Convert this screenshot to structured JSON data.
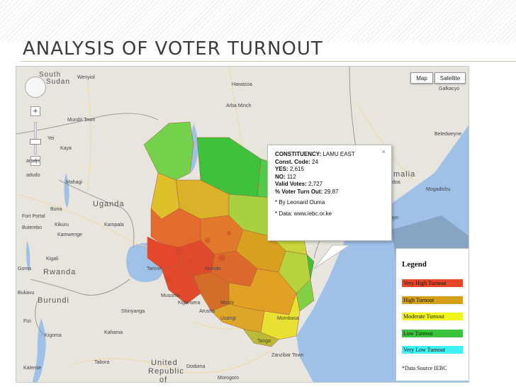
{
  "slide": {
    "title": "ANALYSIS OF VOTER TURNOUT"
  },
  "map": {
    "map_type_buttons": [
      "Map",
      "Satellite"
    ],
    "zoom_in": "+",
    "zoom_out": "−",
    "place_labels": {
      "south_sudan_1": "South",
      "south_sudan_2": "Sudan",
      "wenyiol": "Wenyiol",
      "hawassa": "Hawassa",
      "arba_minch": "Arba Minch",
      "mundri": "Mundri Town",
      "yei": "Yei",
      "kaya": "Kaya",
      "aradje": "aradje",
      "adudo": "adudo",
      "mahagi": "Mahagi",
      "uganda": "Uganda",
      "buna": "Buna",
      "fort_portal": "Fort Portal",
      "kampala": "Kampala",
      "kikuru": "Kikuru",
      "kamwenge": "Kamwenge",
      "bukavu_top": "Butembo",
      "kigali": "Kigali",
      "rwanda": "Rwanda",
      "goma": "Goma",
      "bukavu": "Bukavu",
      "burundi": "Burundi",
      "fizi": "Fizi",
      "kigoma": "Kigoma",
      "kalemie": "Kalemie",
      "tarime": "Tarime",
      "nairobi": "Nairobi",
      "musoma": "Musoma",
      "moshi": "Moshi",
      "arusha": "Arusha",
      "usangi": "Usangi",
      "kigonsera": "Kigonsera",
      "mombasa": "Mombasa",
      "tanga": "Tanga",
      "zanzibar": "Zanzibar Town",
      "shinyanga": "Shinyanga",
      "united_republic": "United",
      "republic": "Republic",
      "of": "of",
      "dodoma": "Dodoma",
      "morogoro": "Morogoro",
      "tabora": "Tabora",
      "kahama": "Kahama",
      "somalia": "malia",
      "baidoa": "Baidoa",
      "mogadishu": "Mogadishu",
      "kismayo": "Kismayo",
      "galkacyo": "Galkacyo",
      "beledweyne": "Beledweyne"
    },
    "info_window": {
      "constituency_label": "CONSTITUENCY:",
      "constituency_value": "LAMU EAST",
      "const_code_label": "Const. Code:",
      "const_code_value": "24",
      "yes_label": "YES:",
      "yes_value": "2,615",
      "no_label": "NO:",
      "no_value": "112",
      "valid_label": "Valid Votes:",
      "valid_value": "2,727",
      "turnout_label": "% Voter Turn Out:",
      "turnout_value": "29.87",
      "author_note": "* By Leonard Ouma",
      "data_note": "* Data: www.iebc.or.ke",
      "close": "×"
    },
    "legend": {
      "title": "Legend",
      "items": [
        {
          "label": "Very High Turnout",
          "color": "#e8452b"
        },
        {
          "label": "High Turnout",
          "color": "#d4a018"
        },
        {
          "label": "Moderate Turnout",
          "color": "#f5f51e"
        },
        {
          "label": "Low Turnout",
          "color": "#3ac23a"
        },
        {
          "label": "Very Low Turnout",
          "color": "#3ff2f2"
        }
      ],
      "source": "*Data Source IEBC"
    }
  }
}
